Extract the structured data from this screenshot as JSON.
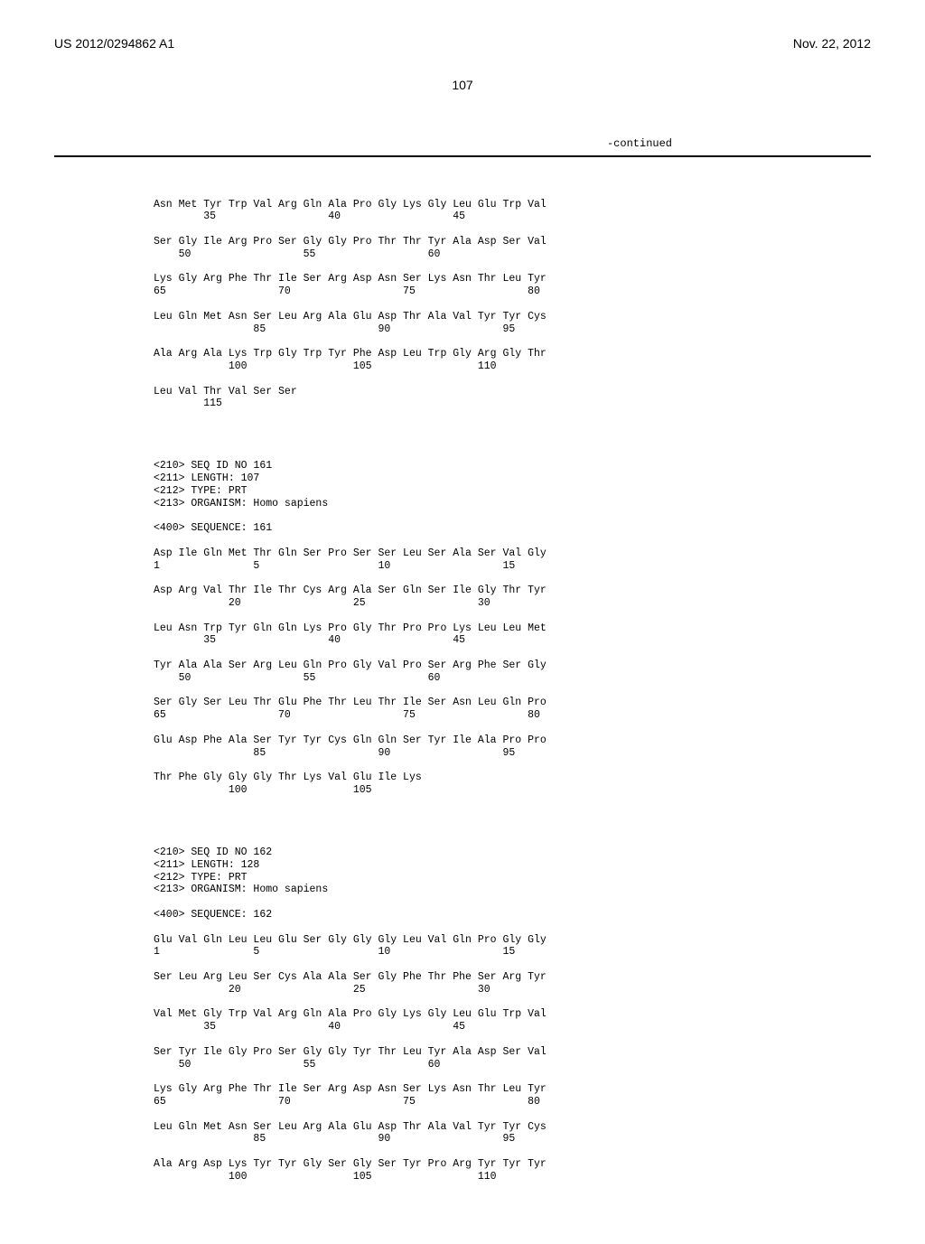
{
  "header": {
    "pubnum": "US 2012/0294862 A1",
    "pubdate": "Nov. 22, 2012",
    "pagenum": "107",
    "continued": "-continued"
  },
  "seq160_tail": {
    "rows": [
      {
        "aa": "Asn Met Tyr Trp Val Arg Gln Ala Pro Gly Lys Gly Leu Glu Trp Val",
        "nums": "        35                  40                  45            "
      },
      {
        "aa": "Ser Gly Ile Arg Pro Ser Gly Gly Pro Thr Thr Tyr Ala Asp Ser Val",
        "nums": "    50                  55                  60                "
      },
      {
        "aa": "Lys Gly Arg Phe Thr Ile Ser Arg Asp Asn Ser Lys Asn Thr Leu Tyr",
        "nums": "65                  70                  75                  80"
      },
      {
        "aa": "Leu Gln Met Asn Ser Leu Arg Ala Glu Asp Thr Ala Val Tyr Tyr Cys",
        "nums": "                85                  90                  95    "
      },
      {
        "aa": "Ala Arg Ala Lys Trp Gly Trp Tyr Phe Asp Leu Trp Gly Arg Gly Thr",
        "nums": "            100                 105                 110        "
      },
      {
        "aa": "Leu Val Thr Val Ser Ser",
        "nums": "        115"
      }
    ]
  },
  "seq161": {
    "headers": [
      "<210> SEQ ID NO 161",
      "<211> LENGTH: 107",
      "<212> TYPE: PRT",
      "<213> ORGANISM: Homo sapiens",
      "",
      "<400> SEQUENCE: 161"
    ],
    "rows": [
      {
        "aa": "Asp Ile Gln Met Thr Gln Ser Pro Ser Ser Leu Ser Ala Ser Val Gly",
        "nums": "1               5                   10                  15    "
      },
      {
        "aa": "Asp Arg Val Thr Ile Thr Cys Arg Ala Ser Gln Ser Ile Gly Thr Tyr",
        "nums": "            20                  25                  30        "
      },
      {
        "aa": "Leu Asn Trp Tyr Gln Gln Lys Pro Gly Thr Pro Pro Lys Leu Leu Met",
        "nums": "        35                  40                  45            "
      },
      {
        "aa": "Tyr Ala Ala Ser Arg Leu Gln Pro Gly Val Pro Ser Arg Phe Ser Gly",
        "nums": "    50                  55                  60                "
      },
      {
        "aa": "Ser Gly Ser Leu Thr Glu Phe Thr Leu Thr Ile Ser Asn Leu Gln Pro",
        "nums": "65                  70                  75                  80"
      },
      {
        "aa": "Glu Asp Phe Ala Ser Tyr Tyr Cys Gln Gln Ser Tyr Ile Ala Pro Pro",
        "nums": "                85                  90                  95    "
      },
      {
        "aa": "Thr Phe Gly Gly Gly Thr Lys Val Glu Ile Lys",
        "nums": "            100                 105"
      }
    ]
  },
  "seq162": {
    "headers": [
      "<210> SEQ ID NO 162",
      "<211> LENGTH: 128",
      "<212> TYPE: PRT",
      "<213> ORGANISM: Homo sapiens",
      "",
      "<400> SEQUENCE: 162"
    ],
    "rows": [
      {
        "aa": "Glu Val Gln Leu Leu Glu Ser Gly Gly Gly Leu Val Gln Pro Gly Gly",
        "nums": "1               5                   10                  15    "
      },
      {
        "aa": "Ser Leu Arg Leu Ser Cys Ala Ala Ser Gly Phe Thr Phe Ser Arg Tyr",
        "nums": "            20                  25                  30        "
      },
      {
        "aa": "Val Met Gly Trp Val Arg Gln Ala Pro Gly Lys Gly Leu Glu Trp Val",
        "nums": "        35                  40                  45            "
      },
      {
        "aa": "Ser Tyr Ile Gly Pro Ser Gly Gly Tyr Thr Leu Tyr Ala Asp Ser Val",
        "nums": "    50                  55                  60                "
      },
      {
        "aa": "Lys Gly Arg Phe Thr Ile Ser Arg Asp Asn Ser Lys Asn Thr Leu Tyr",
        "nums": "65                  70                  75                  80"
      },
      {
        "aa": "Leu Gln Met Asn Ser Leu Arg Ala Glu Asp Thr Ala Val Tyr Tyr Cys",
        "nums": "                85                  90                  95    "
      },
      {
        "aa": "Ala Arg Asp Lys Tyr Tyr Gly Ser Gly Ser Tyr Pro Arg Tyr Tyr Tyr",
        "nums": "            100                 105                 110        "
      }
    ]
  }
}
